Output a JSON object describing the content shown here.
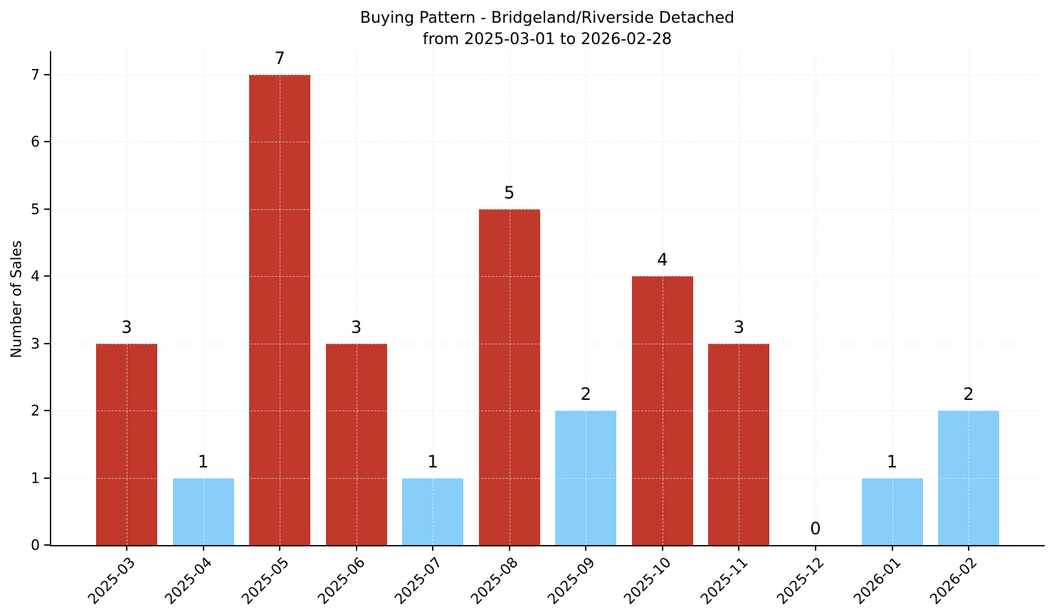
{
  "chart_data": {
    "type": "bar",
    "title": "Buying Pattern - Bridgeland/Riverside Detached",
    "subtitle": "from 2025-03-01 to 2026-02-28",
    "ylabel": "Number of Sales",
    "xlabel": "",
    "categories": [
      "2025-03",
      "2025-04",
      "2025-05",
      "2025-06",
      "2025-07",
      "2025-08",
      "2025-09",
      "2025-10",
      "2025-11",
      "2025-12",
      "2026-01",
      "2026-02"
    ],
    "values": [
      3,
      1,
      7,
      3,
      1,
      5,
      2,
      4,
      3,
      0,
      1,
      2
    ],
    "bar_colors": [
      "red",
      "blue",
      "red",
      "red",
      "blue",
      "red",
      "blue",
      "red",
      "red",
      null,
      "blue",
      "blue"
    ],
    "palette": {
      "red": "#c0392b",
      "blue": "#87cefa"
    },
    "value_labels": [
      3,
      1,
      7,
      3,
      1,
      5,
      2,
      4,
      3,
      0,
      1,
      2
    ],
    "yticks": [
      0,
      1,
      2,
      3,
      4,
      5,
      6,
      7
    ],
    "ylim": [
      0,
      7.35
    ],
    "grid": "dashed, horizontal and vertical, drawn over bars",
    "legend": "none",
    "x_tick_rotation_deg": 45
  }
}
